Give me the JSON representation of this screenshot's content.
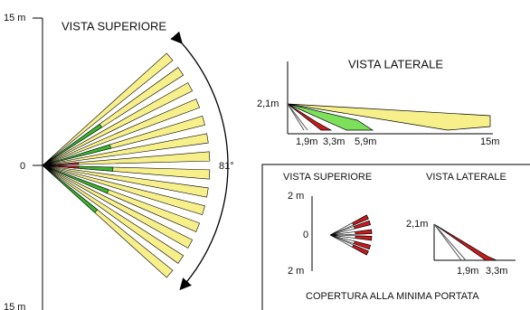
{
  "top_view": {
    "title": "VISTA SUPERIORE",
    "y_top": "15 m",
    "y_zero": "0",
    "y_bottom": "15 m",
    "angle": "81°"
  },
  "side_view": {
    "title": "VISTA LATERALE",
    "height": "2,1m",
    "distances": [
      "1,9m",
      "3,3m",
      "5,9m",
      "15m"
    ]
  },
  "min_range": {
    "top_title": "VISTA SUPERIORE",
    "side_title": "VISTA LATERALE",
    "y_top": "2 m",
    "y_zero": "0",
    "y_bottom": "2 m",
    "height": "2,1m",
    "distances": [
      "1,9m",
      "3,3m"
    ],
    "caption": "COPERTURA ALLA MINIMA PORTATA"
  }
}
